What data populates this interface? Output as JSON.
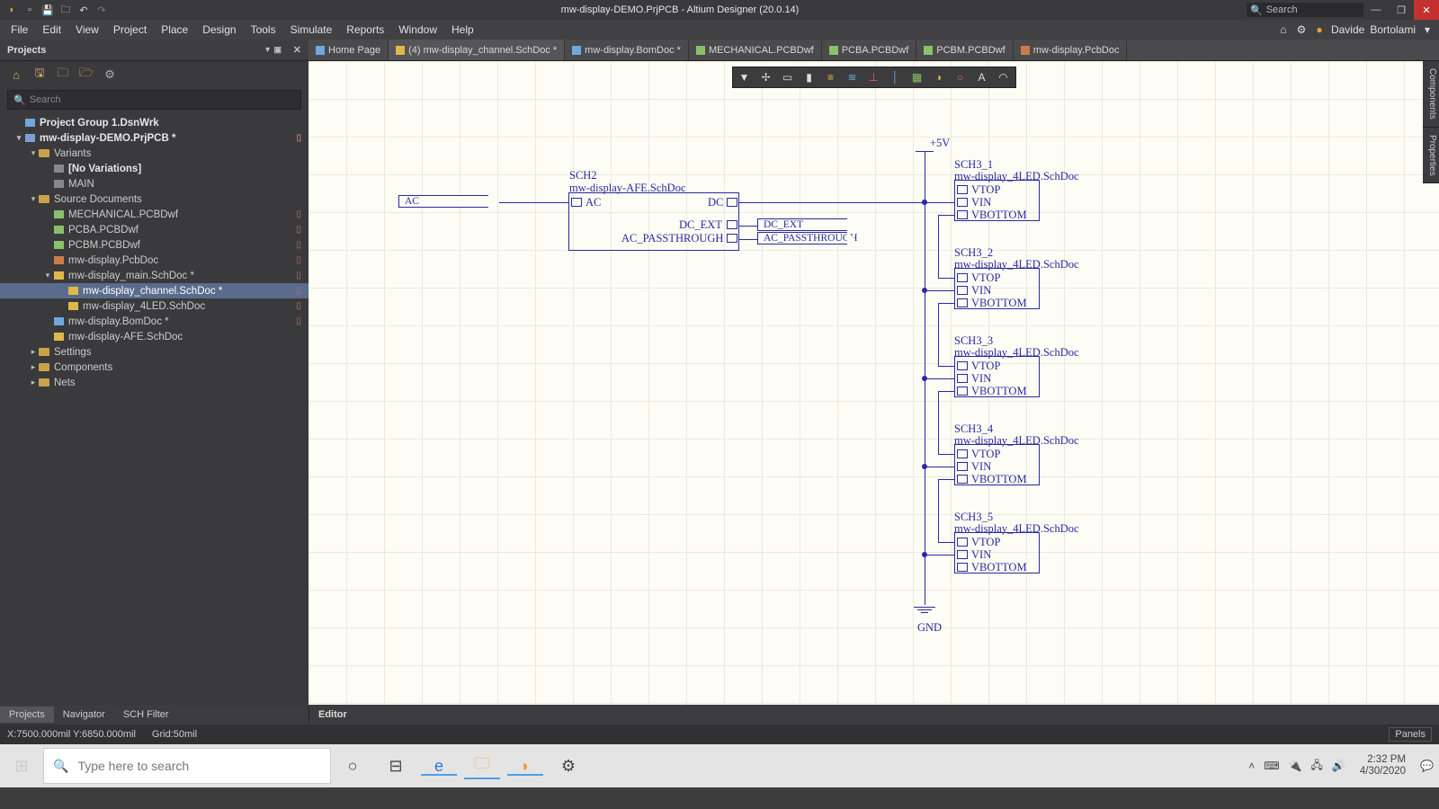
{
  "window": {
    "title": "mw-display-DEMO.PrjPCB - Altium Designer (20.0.14)",
    "search_placeholder": "Search"
  },
  "menubar": [
    "File",
    "Edit",
    "View",
    "Project",
    "Place",
    "Design",
    "Tools",
    "Simulate",
    "Reports",
    "Window",
    "Help"
  ],
  "user": {
    "name": "Davide",
    "surname": "Bortolami"
  },
  "panel": {
    "title": "Projects"
  },
  "tabs": [
    {
      "icon": "tic-home",
      "label": "Home Page"
    },
    {
      "icon": "tic-sch",
      "label": "(4) mw-display_channel.SchDoc *",
      "active": true
    },
    {
      "icon": "tic-bom",
      "label": "mw-display.BomDoc *"
    },
    {
      "icon": "tic-wf",
      "label": "MECHANICAL.PCBDwf"
    },
    {
      "icon": "tic-wf",
      "label": "PCBA.PCBDwf"
    },
    {
      "icon": "tic-wf",
      "label": "PCBM.PCBDwf"
    },
    {
      "icon": "tic-pcb",
      "label": "mw-display.PcbDoc"
    }
  ],
  "sidebar": {
    "search_placeholder": "Search"
  },
  "tree": [
    {
      "d": 0,
      "tw": "",
      "ic": "ic-group",
      "t": "Project Group 1.DsnWrk",
      "bold": true
    },
    {
      "d": 0,
      "tw": "▾",
      "ic": "ic-prj",
      "t": "mw-display-DEMO.PrjPCB *",
      "bold": true,
      "mk": "▯"
    },
    {
      "d": 1,
      "tw": "▾",
      "ic": "ic-folder",
      "t": "Variants"
    },
    {
      "d": 2,
      "tw": "",
      "ic": "ic-var",
      "t": "[No Variations]",
      "bold": true
    },
    {
      "d": 2,
      "tw": "",
      "ic": "ic-var",
      "t": "MAIN"
    },
    {
      "d": 1,
      "tw": "▾",
      "ic": "ic-folder",
      "t": "Source Documents"
    },
    {
      "d": 2,
      "tw": "",
      "ic": "ic-wf",
      "t": "MECHANICAL.PCBDwf",
      "mk": "▯"
    },
    {
      "d": 2,
      "tw": "",
      "ic": "ic-wf",
      "t": "PCBA.PCBDwf",
      "mk": "▯"
    },
    {
      "d": 2,
      "tw": "",
      "ic": "ic-wf",
      "t": "PCBM.PCBDwf",
      "mk": "▯"
    },
    {
      "d": 2,
      "tw": "",
      "ic": "ic-pcb",
      "t": "mw-display.PcbDoc",
      "mk": "▯"
    },
    {
      "d": 2,
      "tw": "▾",
      "ic": "ic-sch",
      "t": "mw-display_main.SchDoc *",
      "mk": "▯"
    },
    {
      "d": 3,
      "tw": "",
      "ic": "ic-sch",
      "t": "mw-display_channel.SchDoc *",
      "mk": "▯",
      "sel": true
    },
    {
      "d": 3,
      "tw": "",
      "ic": "ic-sch",
      "t": "mw-display_4LED.SchDoc",
      "mk": "▯"
    },
    {
      "d": 2,
      "tw": "",
      "ic": "ic-bom",
      "t": "mw-display.BomDoc *",
      "mk": "▯"
    },
    {
      "d": 2,
      "tw": "",
      "ic": "ic-sch",
      "t": "mw-display-AFE.SchDoc"
    },
    {
      "d": 1,
      "tw": "▸",
      "ic": "ic-folder",
      "t": "Settings"
    },
    {
      "d": 1,
      "tw": "▸",
      "ic": "ic-folder",
      "t": "Components"
    },
    {
      "d": 1,
      "tw": "▸",
      "ic": "ic-folder",
      "t": "Nets"
    }
  ],
  "schematic": {
    "sheet_afe": {
      "ref": "SCH2",
      "doc": "mw-display-AFE.SchDoc",
      "ports": {
        "ac_in": "AC",
        "dc": "DC",
        "dc_ext": "DC_EXT",
        "ac_pt": "AC_PASSTHROUGH"
      }
    },
    "port_ac": "AC",
    "net_dc_ext": "DC_EXT",
    "net_ac_pt": "AC_PASSTHROUGH",
    "pwr": {
      "p5v": "+5V",
      "gnd": "GND"
    },
    "led_blocks": [
      {
        "ref": "SCH3_1",
        "doc": "mw-display_4LED.SchDoc",
        "p": [
          "VTOP",
          "VIN",
          "VBOTTOM"
        ]
      },
      {
        "ref": "SCH3_2",
        "doc": "mw-display_4LED.SchDoc",
        "p": [
          "VTOP",
          "VIN",
          "VBOTTOM"
        ]
      },
      {
        "ref": "SCH3_3",
        "doc": "mw-display_4LED.SchDoc",
        "p": [
          "VTOP",
          "VIN",
          "VBOTTOM"
        ]
      },
      {
        "ref": "SCH3_4",
        "doc": "mw-display_4LED.SchDoc",
        "p": [
          "VTOP",
          "VIN",
          "VBOTTOM"
        ]
      },
      {
        "ref": "SCH3_5",
        "doc": "mw-display_4LED.SchDoc",
        "p": [
          "VTOP",
          "VIN",
          "VBOTTOM"
        ]
      }
    ]
  },
  "rightrail": [
    "Components",
    "Properties"
  ],
  "lowtabs": {
    "left": [
      "Projects",
      "Navigator",
      "SCH Filter"
    ],
    "editor_label": "Editor",
    "active": 0
  },
  "status": {
    "coords": "X:7500.000mil Y:6850.000mil",
    "grid": "Grid:50mil",
    "panels": "Panels"
  },
  "taskbar": {
    "search_placeholder": "Type here to search",
    "time": "2:32 PM",
    "date": "4/30/2020"
  }
}
